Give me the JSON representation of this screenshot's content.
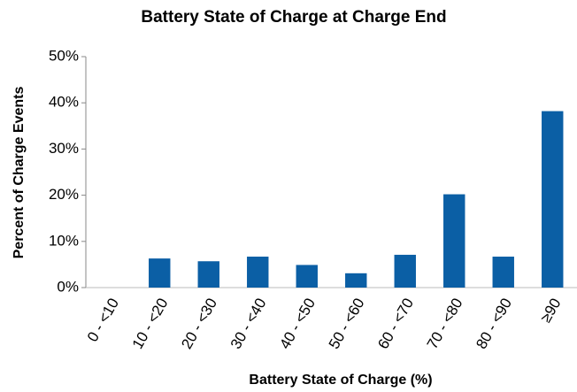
{
  "chart_data": {
    "type": "bar",
    "title": "Battery State of Charge at Charge End",
    "xlabel": "Battery State of Charge (%)",
    "ylabel": "Percent of Charge Events",
    "categories": [
      "0 - <10",
      "10 - <20",
      "20 - <30",
      "30 - <40",
      "40 - <50",
      "50 - <60",
      "60 - <70",
      "70 - <80",
      "80 - <90",
      "≥90"
    ],
    "values": [
      0,
      6.3,
      5.7,
      6.7,
      4.9,
      3.1,
      7.1,
      20.2,
      6.7,
      38.2
    ],
    "color": "#0b5fa5",
    "ylim": [
      0,
      50
    ],
    "yticks": [
      {
        "value": 0,
        "label": "0%"
      },
      {
        "value": 10,
        "label": "10%"
      },
      {
        "value": 20,
        "label": "20%"
      },
      {
        "value": 30,
        "label": "30%"
      },
      {
        "value": 40,
        "label": "40%"
      },
      {
        "value": 50,
        "label": "50%"
      }
    ],
    "grid": false
  }
}
